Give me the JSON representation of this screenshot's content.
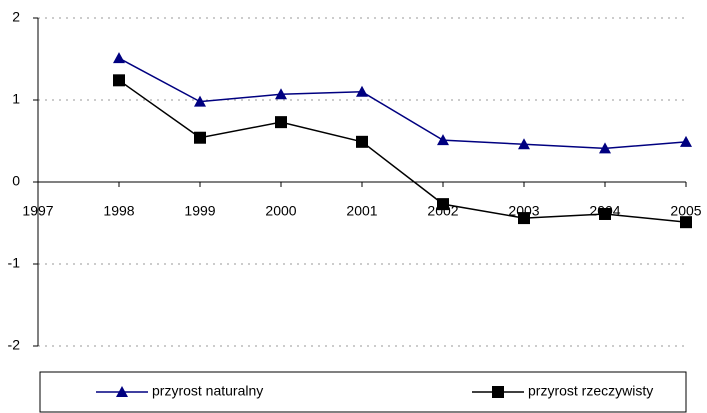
{
  "chart_data": {
    "type": "line",
    "x": [
      1998,
      1999,
      2000,
      2001,
      2002,
      2003,
      2004,
      2005
    ],
    "series": [
      {
        "name": "przyrost naturalny",
        "color": "#000080",
        "marker": "triangle",
        "values": [
          1.51,
          0.98,
          1.07,
          1.1,
          0.51,
          0.46,
          0.41,
          0.49
        ]
      },
      {
        "name": "przyrost rzeczywisty",
        "color": "#000000",
        "marker": "square",
        "values": [
          1.24,
          0.54,
          0.73,
          0.49,
          -0.27,
          -0.44,
          -0.39,
          -0.49
        ]
      }
    ],
    "xlim": [
      1997,
      2005
    ],
    "xticks": [
      1997,
      1998,
      1999,
      2000,
      2001,
      2002,
      2003,
      2004,
      2005
    ],
    "ylim": [
      -2,
      2
    ],
    "yticks": [
      -2,
      -1,
      0,
      1,
      2
    ],
    "grid": true,
    "legend": "bottom"
  }
}
